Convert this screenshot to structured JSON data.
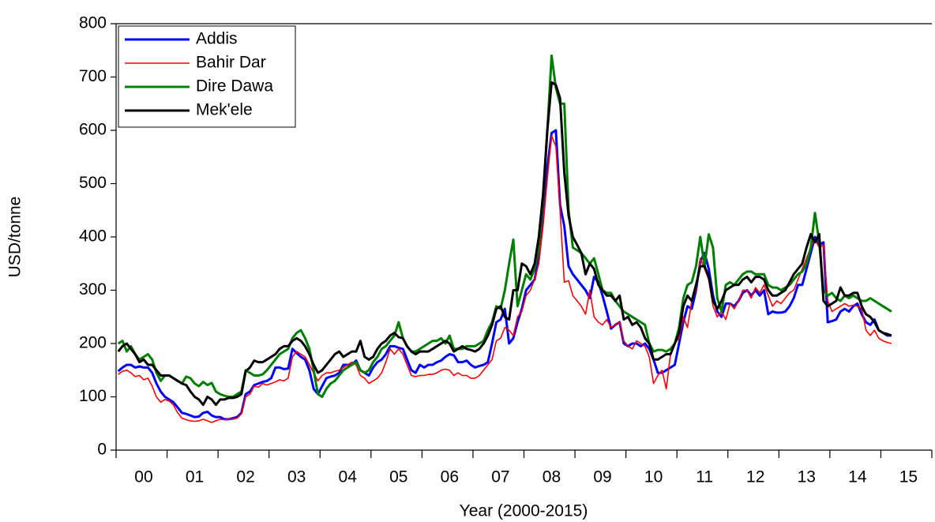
{
  "chart_data": {
    "type": "line",
    "y_label": "USD/tonne",
    "x_label": "Year (2000-2015)",
    "ylim": [
      0,
      800
    ],
    "yticks": [
      0,
      100,
      200,
      300,
      400,
      500,
      600,
      700,
      800
    ],
    "legend": "top-left",
    "categories": [
      null,
      null,
      null,
      null,
      null,
      null,
      "00",
      null,
      null,
      null,
      null,
      null,
      null,
      null,
      null,
      null,
      null,
      null,
      "01",
      null,
      null,
      null,
      null,
      null,
      null,
      null,
      null,
      null,
      null,
      null,
      "02",
      null,
      null,
      null,
      null,
      null,
      null,
      null,
      null,
      null,
      null,
      null,
      "03",
      null,
      null,
      null,
      null,
      null,
      null,
      null,
      null,
      null,
      null,
      null,
      "04",
      null,
      null,
      null,
      null,
      null,
      null,
      null,
      null,
      null,
      null,
      null,
      "05",
      null,
      null,
      null,
      null,
      null,
      null,
      null,
      null,
      null,
      null,
      null,
      "06",
      null,
      null,
      null,
      null,
      null,
      null,
      null,
      null,
      null,
      null,
      null,
      "07",
      null,
      null,
      null,
      null,
      null,
      null,
      null,
      null,
      null,
      null,
      null,
      "08",
      null,
      null,
      null,
      null,
      null,
      null,
      null,
      null,
      null,
      null,
      null,
      "09",
      null,
      null,
      null,
      null,
      null,
      null,
      null,
      null,
      null,
      null,
      null,
      "10",
      null,
      null,
      null,
      null,
      null,
      null,
      null,
      null,
      null,
      null,
      null,
      "11",
      null,
      null,
      null,
      null,
      null,
      null,
      null,
      null,
      null,
      null,
      null,
      "12",
      null,
      null,
      null,
      null,
      null,
      null,
      null,
      null,
      null,
      null,
      null,
      "13",
      null,
      null,
      null,
      null,
      null,
      null,
      null,
      null,
      null,
      null,
      null,
      "14",
      null,
      null,
      null,
      null,
      null,
      null,
      null,
      null,
      null,
      null,
      null,
      "15",
      null,
      null,
      null,
      null,
      null
    ],
    "series": [
      {
        "name": "Addis",
        "color": "#0000ff",
        "values": [
          148,
          155,
          160,
          160,
          155,
          157,
          155,
          155,
          145,
          125,
          110,
          100,
          95,
          90,
          80,
          70,
          68,
          65,
          62,
          63,
          70,
          72,
          65,
          62,
          62,
          58,
          58,
          60,
          62,
          70,
          105,
          110,
          122,
          125,
          128,
          130,
          135,
          155,
          155,
          152,
          153,
          190,
          182,
          175,
          170,
          150,
          115,
          105,
          120,
          135,
          138,
          140,
          145,
          160,
          160,
          160,
          168,
          150,
          145,
          140,
          155,
          165,
          170,
          180,
          195,
          195,
          192,
          190,
          170,
          150,
          145,
          160,
          155,
          160,
          160,
          165,
          168,
          175,
          180,
          178,
          165,
          165,
          168,
          160,
          155,
          158,
          160,
          165,
          200,
          240,
          245,
          265,
          200,
          210,
          240,
          265,
          300,
          310,
          320,
          360,
          440,
          530,
          595,
          600,
          460,
          420,
          345,
          330,
          320,
          310,
          300,
          285,
          325,
          315,
          290,
          260,
          228,
          235,
          240,
          200,
          195,
          200,
          200,
          195,
          200,
          190,
          170,
          145,
          145,
          150,
          155,
          160,
          200,
          240,
          270,
          265,
          300,
          355,
          370,
          340,
          290,
          260,
          250,
          275,
          275,
          270,
          280,
          295,
          300,
          290,
          300,
          290,
          300,
          255,
          260,
          258,
          258,
          260,
          270,
          285,
          310,
          310,
          340,
          370,
          400,
          385,
          390,
          240,
          242,
          245,
          260,
          265,
          260,
          270,
          275,
          255,
          240,
          235,
          245,
          225,
          220,
          215,
          215,
          null,
          null,
          null,
          null,
          null,
          null,
          null,
          null,
          null
        ]
      },
      {
        "name": "Bahir Dar",
        "color": "#ff0000",
        "values": [
          142,
          148,
          150,
          145,
          138,
          140,
          132,
          135,
          120,
          100,
          90,
          95,
          92,
          85,
          70,
          60,
          57,
          55,
          54,
          55,
          58,
          55,
          52,
          55,
          58,
          57,
          58,
          58,
          60,
          68,
          100,
          105,
          120,
          118,
          125,
          122,
          125,
          128,
          132,
          130,
          135,
          175,
          185,
          180,
          175,
          160,
          145,
          130,
          140,
          145,
          145,
          148,
          150,
          155,
          160,
          165,
          160,
          140,
          135,
          125,
          130,
          135,
          145,
          165,
          190,
          180,
          190,
          180,
          160,
          140,
          138,
          140,
          140,
          142,
          142,
          145,
          150,
          152,
          150,
          140,
          145,
          140,
          140,
          135,
          135,
          140,
          150,
          160,
          170,
          205,
          210,
          230,
          225,
          215,
          250,
          260,
          290,
          300,
          320,
          350,
          420,
          510,
          590,
          570,
          450,
          315,
          318,
          290,
          280,
          270,
          255,
          300,
          250,
          240,
          235,
          245,
          230,
          235,
          240,
          205,
          195,
          190,
          205,
          200,
          195,
          175,
          125,
          140,
          150,
          115,
          180,
          200,
          210,
          250,
          230,
          280,
          300,
          360,
          340,
          320,
          270,
          250,
          260,
          245,
          275,
          265,
          280,
          300,
          300,
          285,
          305,
          295,
          310,
          290,
          270,
          280,
          275,
          285,
          295,
          300,
          320,
          340,
          360,
          380,
          395,
          380,
          385,
          280,
          260,
          265,
          270,
          275,
          270,
          272,
          270,
          265,
          225,
          215,
          225,
          210,
          205,
          202,
          200,
          null,
          null,
          null,
          null,
          null,
          null,
          null,
          null,
          null
        ]
      },
      {
        "name": "Dire Dawa",
        "color": "#008000",
        "values": [
          200,
          205,
          185,
          195,
          180,
          170,
          175,
          180,
          170,
          145,
          130,
          140,
          140,
          135,
          130,
          125,
          138,
          135,
          125,
          120,
          128,
          122,
          126,
          110,
          105,
          102,
          100,
          100,
          105,
          110,
          150,
          145,
          140,
          140,
          142,
          150,
          160,
          170,
          180,
          185,
          190,
          210,
          220,
          225,
          210,
          190,
          150,
          105,
          100,
          115,
          125,
          130,
          140,
          150,
          155,
          160,
          165,
          150,
          145,
          150,
          165,
          175,
          190,
          195,
          205,
          215,
          240,
          210,
          195,
          185,
          185,
          190,
          195,
          200,
          205,
          205,
          210,
          200,
          215,
          190,
          190,
          190,
          195,
          195,
          195,
          200,
          205,
          225,
          240,
          270,
          265,
          300,
          350,
          395,
          270,
          300,
          330,
          320,
          340,
          380,
          470,
          600,
          740,
          680,
          650,
          650,
          450,
          380,
          375,
          370,
          360,
          350,
          360,
          330,
          300,
          295,
          295,
          280,
          270,
          260,
          255,
          250,
          245,
          240,
          235,
          200,
          185,
          188,
          188,
          185,
          190,
          200,
          230,
          285,
          310,
          315,
          345,
          400,
          345,
          405,
          380,
          285,
          260,
          310,
          315,
          310,
          320,
          330,
          335,
          335,
          330,
          330,
          330,
          310,
          305,
          305,
          300,
          305,
          310,
          320,
          330,
          335,
          350,
          380,
          445,
          390,
          300,
          290,
          295,
          285,
          280,
          290,
          285,
          290,
          285,
          280,
          280,
          285,
          280,
          275,
          270,
          265,
          260,
          null,
          null,
          null,
          null,
          null,
          null,
          null,
          null,
          null
        ]
      },
      {
        "name": "Mek'ele",
        "color": "#000000",
        "values": [
          185,
          195,
          200,
          190,
          180,
          165,
          170,
          160,
          160,
          150,
          140,
          140,
          140,
          135,
          130,
          125,
          122,
          110,
          100,
          95,
          85,
          100,
          95,
          85,
          95,
          95,
          98,
          98,
          100,
          105,
          148,
          155,
          168,
          165,
          165,
          170,
          175,
          180,
          190,
          195,
          195,
          205,
          210,
          205,
          195,
          180,
          160,
          145,
          150,
          160,
          170,
          180,
          185,
          175,
          180,
          185,
          185,
          205,
          175,
          170,
          175,
          190,
          200,
          205,
          215,
          220,
          212,
          210,
          195,
          185,
          180,
          185,
          185,
          185,
          190,
          195,
          200,
          205,
          200,
          185,
          190,
          195,
          190,
          188,
          185,
          190,
          200,
          215,
          235,
          265,
          270,
          250,
          245,
          300,
          300,
          350,
          345,
          330,
          350,
          400,
          480,
          600,
          690,
          685,
          660,
          520,
          440,
          400,
          385,
          370,
          330,
          350,
          340,
          310,
          300,
          290,
          290,
          280,
          290,
          245,
          250,
          235,
          240,
          230,
          210,
          200,
          170,
          170,
          175,
          180,
          180,
          200,
          220,
          270,
          290,
          280,
          310,
          345,
          345,
          325,
          280,
          265,
          280,
          300,
          305,
          310,
          310,
          320,
          325,
          315,
          325,
          325,
          320,
          300,
          290,
          290,
          295,
          300,
          315,
          330,
          340,
          350,
          380,
          405,
          390,
          405,
          280,
          270,
          275,
          280,
          305,
          290,
          290,
          295,
          295,
          270,
          255,
          250,
          240,
          225,
          220,
          218,
          215,
          null,
          null,
          null,
          null,
          null,
          null,
          null,
          null,
          null
        ]
      }
    ]
  }
}
